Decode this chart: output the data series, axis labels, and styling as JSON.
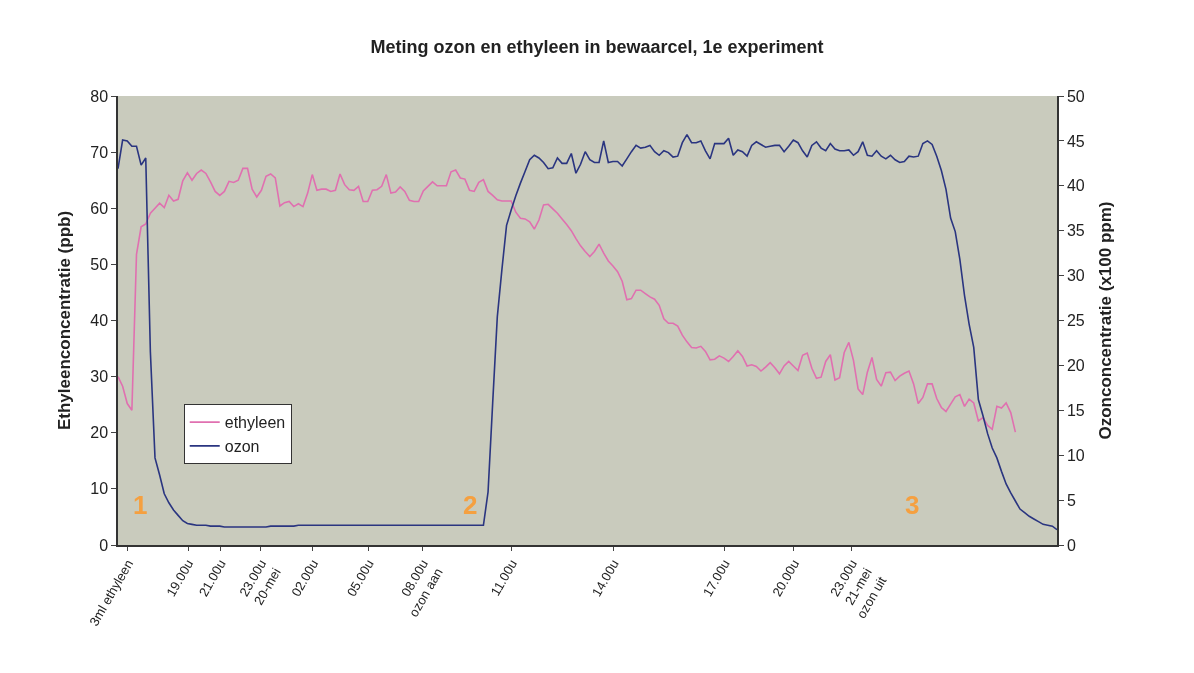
{
  "chart_data": {
    "type": "line",
    "title": "Meting ozon en ethyleen in bewaarcel, 1e experiment",
    "ylabel": "Ethyleenconcentratie (ppb)",
    "y2label": "Ozonconcentratie (x100 ppm)",
    "legend": "bottom left",
    "categories": [
      null,
      null,
      null,
      "3ml ethyleen",
      null,
      null,
      null,
      null,
      null,
      null,
      null,
      null,
      null,
      null,
      null,
      null,
      "19.00u",
      null,
      null,
      null,
      null,
      null,
      null,
      "21.00u",
      null,
      null,
      null,
      null,
      null,
      null,
      null,
      null,
      null,
      null,
      null,
      "23.00u\n20-mei",
      null,
      null,
      null,
      null,
      null,
      null,
      null,
      "02.00u",
      null,
      null,
      null,
      null,
      null,
      null,
      null,
      null,
      null,
      null,
      null,
      "05.00u",
      null,
      null,
      null,
      null,
      null,
      null,
      null,
      null,
      null,
      null,
      null,
      null,
      null,
      null,
      "08.00u\nozon aan",
      null,
      null,
      null,
      null,
      null,
      null,
      null,
      null,
      null,
      null,
      null,
      null,
      null,
      null,
      null,
      "11.00u",
      null,
      null,
      null,
      null,
      null,
      null,
      null,
      null,
      null,
      null,
      null,
      null,
      null,
      null,
      null,
      null,
      null,
      null,
      null,
      null,
      null,
      "14.00u",
      null,
      null,
      null,
      null,
      null,
      null,
      null,
      null,
      null,
      null,
      null,
      null,
      null,
      null,
      null,
      null,
      null,
      null,
      null,
      null,
      null,
      null,
      null,
      "17.00u",
      null,
      null,
      null,
      null,
      null,
      null,
      null,
      null,
      null,
      null,
      null,
      null,
      null,
      null,
      "20.00u",
      null,
      null,
      null,
      null,
      null,
      null,
      null,
      null,
      null,
      null,
      null,
      null,
      null,
      null,
      null,
      null,
      null,
      null,
      "23.00u\n21-mei\nozon uit",
      null,
      null,
      null,
      null,
      null,
      null,
      null,
      null,
      null,
      null,
      null,
      null,
      null,
      null,
      null,
      null,
      null,
      null,
      null,
      null,
      null,
      null,
      null,
      null,
      null,
      null,
      null,
      null,
      null,
      null,
      null,
      null,
      null,
      null,
      null,
      null,
      null
    ],
    "ylim": [
      0,
      80
    ],
    "yticks": [
      0,
      10,
      20,
      30,
      40,
      50,
      60,
      70,
      80
    ],
    "y2lim": [
      0,
      50
    ],
    "y2ticks": [
      0,
      5,
      10,
      15,
      20,
      25,
      30,
      35,
      40,
      45,
      50
    ],
    "annotations": [
      "1",
      "2",
      "3"
    ],
    "series": [
      {
        "name": "ethyleen",
        "color": "#e070b0",
        "axis": "y",
        "values": [
          30,
          28.3,
          25.2,
          24.0,
          51.8,
          56.7,
          57.2,
          59.1,
          60,
          60.9,
          60.1,
          62.3,
          61.3,
          61.6,
          64.9,
          66.3,
          65,
          66.2,
          66.8,
          66.2,
          64.7,
          63,
          62.3,
          63.0,
          64.8,
          64.6,
          65.0,
          67.1,
          67.1,
          63.4,
          62.0,
          63.2,
          65.7,
          66.1,
          65.4,
          60.4,
          61.0,
          61.2,
          60.3,
          60.8,
          60.3,
          62.7,
          66.0,
          63.2,
          63.4,
          63.4,
          63.0,
          63.2,
          66.1,
          64.2,
          63.3,
          63.2,
          63.9,
          61.2,
          61.2,
          63.2,
          63.3,
          63.9,
          66.0,
          62.7,
          62.9,
          63.8,
          63.0,
          61.4,
          61.2,
          61.2,
          63.1,
          63.9,
          64.7,
          64.0,
          64.0,
          64.0,
          66.5,
          66.8,
          65.4,
          65.2,
          63.2,
          63.0,
          64.6,
          65.1,
          63.0,
          62.3,
          61.5,
          61.3,
          61.3,
          61.3,
          59.3,
          58.2,
          58.1,
          57.6,
          56.3,
          57.9,
          60.6,
          60.7,
          59.9,
          59.1,
          58.1,
          57.1,
          56.0,
          54.6,
          53.3,
          52.3,
          51.4,
          52.3,
          53.6,
          52.0,
          50.6,
          49.7,
          48.7,
          47.0,
          43.7,
          43.9,
          45.4,
          45.4,
          44.8,
          44.2,
          43.8,
          42.7,
          40.3,
          39.5,
          39.5,
          39.0,
          37.4,
          36.2,
          35.2,
          35.1,
          35.4,
          34.5,
          33.0,
          33.1,
          33.7,
          33.3,
          32.7,
          33.6,
          34.6,
          33.6,
          31.9,
          32.1,
          31.8,
          31.0,
          31.7,
          32.5,
          31.6,
          30.5,
          31.9,
          32.7,
          31.9,
          31.1,
          33.8,
          34.2,
          31.5,
          29.7,
          29.9,
          32.7,
          33.9,
          29.4,
          29.8,
          34.3,
          36.1,
          32.9,
          27.8,
          26.8,
          30.8,
          33.4,
          29.5,
          28.3,
          30.7,
          30.8,
          29.3,
          30.1,
          30.6,
          31.0,
          28.7,
          25.2,
          26.3,
          28.7,
          28.7,
          26.1,
          24.5,
          23.8,
          25.1,
          26.4,
          26.8,
          24.7,
          26.0,
          25.3,
          22.1,
          22.7,
          21.3,
          20.6,
          24.7,
          24.4,
          25.3,
          23.6,
          20.1,
          null,
          null,
          null,
          null,
          null,
          null,
          null,
          null,
          null
        ]
      },
      {
        "name": "ozon",
        "color": "#2a3580",
        "axis": "y2",
        "values": [
          41.9,
          45.1,
          45.0,
          44.4,
          44.4,
          42.3,
          43.1,
          21.5,
          9.7,
          7.8,
          5.7,
          4.7,
          3.9,
          3.3,
          2.7,
          2.4,
          2.3,
          2.2,
          2.2,
          2.2,
          2.1,
          2.1,
          2.1,
          2.0,
          2.0,
          2.0,
          2.0,
          2.0,
          2.0,
          2.0,
          2.0,
          2.0,
          2.0,
          2.1,
          2.1,
          2.1,
          2.1,
          2.1,
          2.1,
          2.2,
          2.2,
          2.2,
          2.2,
          2.2,
          2.2,
          2.2,
          2.2,
          2.2,
          2.2,
          2.2,
          2.2,
          2.2,
          2.2,
          2.2,
          2.2,
          2.2,
          2.2,
          2.2,
          2.2,
          2.2,
          2.2,
          2.2,
          2.2,
          2.2,
          2.2,
          2.2,
          2.2,
          2.2,
          2.2,
          2.2,
          2.2,
          2.2,
          2.2,
          2.2,
          2.2,
          2.2,
          2.2,
          2.2,
          2.2,
          2.2,
          5.9,
          15.8,
          25.4,
          30.7,
          35.6,
          37.3,
          38.9,
          40.3,
          41.6,
          42.9,
          43.4,
          43.1,
          42.6,
          41.9,
          42.0,
          43.1,
          42.5,
          42.5,
          43.6,
          41.4,
          42.4,
          43.8,
          42.9,
          42.6,
          42.6,
          45.0,
          42.6,
          42.7,
          42.7,
          42.2,
          43.0,
          43.8,
          44.5,
          44.2,
          44.3,
          44.5,
          43.8,
          43.4,
          43.9,
          43.7,
          43.2,
          43.3,
          44.8,
          45.7,
          44.8,
          44.8,
          45.0,
          43.9,
          43.0,
          44.7,
          44.7,
          44.7,
          45.3,
          43.4,
          44.0,
          43.8,
          43.3,
          44.5,
          44.9,
          44.6,
          44.3,
          44.4,
          44.5,
          44.5,
          43.8,
          44.4,
          45.1,
          44.8,
          43.9,
          43.2,
          44.5,
          44.9,
          44.2,
          43.9,
          44.7,
          44.1,
          43.9,
          43.9,
          44.0,
          43.4,
          43.8,
          44.9,
          43.4,
          43.3,
          43.9,
          43.3,
          43.0,
          43.4,
          42.9,
          42.6,
          42.7,
          43.3,
          43.2,
          43.3,
          44.7,
          45.0,
          44.6,
          43.3,
          41.7,
          39.6,
          36.4,
          34.9,
          31.8,
          27.8,
          24.6,
          22.0,
          16.2,
          14.4,
          12.4,
          10.8,
          9.7,
          8.2,
          6.8,
          5.8,
          4.9,
          4.0,
          3.6,
          3.2,
          2.9,
          2.6,
          2.3,
          2.2,
          2.1,
          1.7
        ]
      }
    ]
  }
}
